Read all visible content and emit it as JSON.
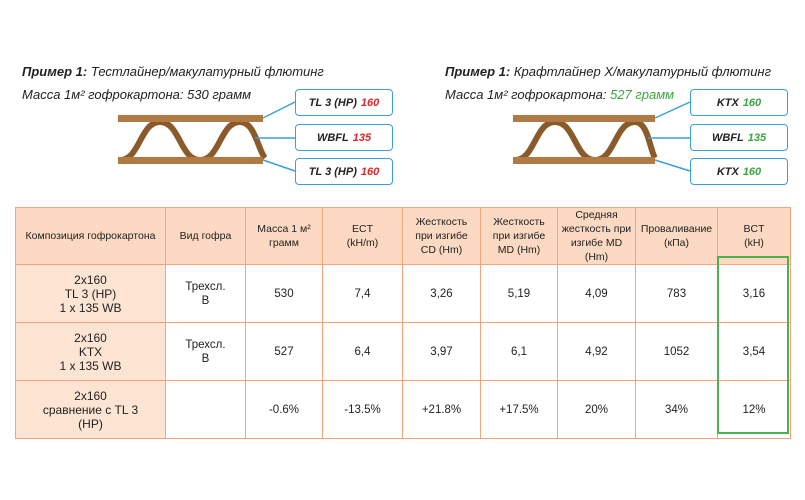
{
  "examples": [
    {
      "title_prefix": "Пример 1:",
      "title": "Тестлайнер/макулатурный флютинг",
      "mass_label": "Масса 1м² гофрокартона:",
      "mass": "530 грамм",
      "layers": [
        {
          "name": "TL 3 (HP)",
          "weight": "160"
        },
        {
          "name": "WBFL",
          "weight": "135"
        },
        {
          "name": "TL 3 (HP)",
          "weight": "160"
        }
      ]
    },
    {
      "title_prefix": "Пример 1:",
      "title": "Крафтлайнер X/макулатурный флютинг",
      "mass_label": "Масса 1м² гофрокартона:",
      "mass": "527 грамм",
      "layers": [
        {
          "name": "KTX",
          "weight": "160"
        },
        {
          "name": "WBFL",
          "weight": "135"
        },
        {
          "name": "KTX",
          "weight": "160"
        }
      ]
    }
  ],
  "table": {
    "header": [
      "Композиция гофрокартона",
      "Вид гофра",
      "Масса 1 м²\nграмм",
      "ECT\n(kH/m)",
      "Жесткость\nпри изгибе\nCD (Hm)",
      "Жесткость\nпри изгибе\nMD (Hm)",
      "Средняя\nжесткость при\nизгибе MD (Hm)",
      "Проваливание\n(кПа)",
      "BCT\n(kH)"
    ],
    "rows": [
      [
        "2x160\nTL 3 (HP)\n1 x 135 WB",
        "Трехсл.\nB",
        "530",
        "7,4",
        "3,26",
        "5,19",
        "4,09",
        "783",
        "3,16"
      ],
      [
        "2x160\nKTX\n1 x 135 WB",
        "Трехсл.\nB",
        "527",
        "6,4",
        "3,97",
        "6,1",
        "4,92",
        "1052",
        "3,54"
      ],
      [
        "2x160\nсравнение с TL 3\n(HP)",
        "",
        "-0.6%",
        "-13.5%",
        "+21.8%",
        "+17.5%",
        "20%",
        "34%",
        "12%"
      ]
    ]
  }
}
